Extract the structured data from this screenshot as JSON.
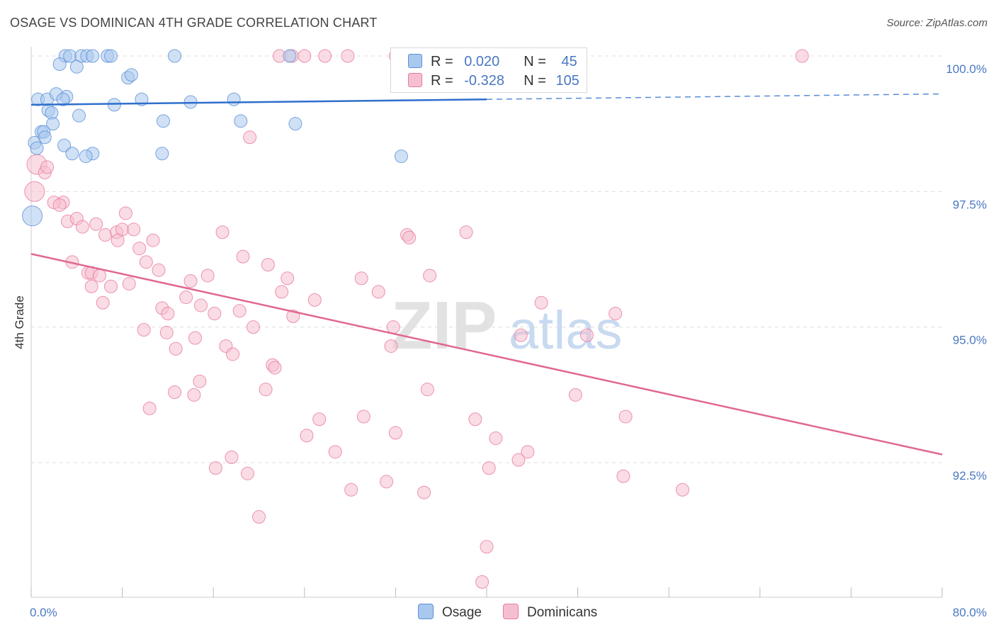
{
  "title": "OSAGE VS DOMINICAN 4TH GRADE CORRELATION CHART",
  "source": "Source: ZipAtlas.com",
  "legend": {
    "rows": [
      {
        "r_label": "R =",
        "r_value": "0.020",
        "n_label": "N =",
        "n_value": "45"
      },
      {
        "r_label": "R =",
        "r_value": "-0.328",
        "n_label": "N =",
        "n_value": "105"
      }
    ]
  },
  "bottom_legend": [
    "Osage",
    "Dominicans"
  ],
  "watermark": {
    "zip": "ZIP",
    "atlas": "atlas"
  },
  "colors": {
    "osage_fill": "#a9c8ee",
    "osage_stroke": "#5b8fd6",
    "osage_line": "#2e6fcc",
    "dom_fill": "#f6bfd0",
    "dom_stroke": "#e8799e",
    "dom_line": "#e0688f",
    "tick": "#4a78c2",
    "grid": "#dddddd"
  },
  "chart_data": {
    "type": "scatter",
    "title": "OSAGE VS DOMINICAN 4TH GRADE CORRELATION CHART",
    "xlabel": "",
    "ylabel": "4th Grade",
    "xlim": [
      0,
      80
    ],
    "ylim": [
      89.6,
      100.6
    ],
    "x_tick_labels": [
      {
        "value": 0,
        "label": "0.0%"
      },
      {
        "value": 80,
        "label": "80.0%"
      }
    ],
    "y_tick_labels": [
      {
        "value": 100.0,
        "label": "100.0%"
      },
      {
        "value": 97.5,
        "label": "97.5%"
      },
      {
        "value": 95.0,
        "label": "95.0%"
      },
      {
        "value": 92.5,
        "label": "92.5%"
      }
    ],
    "grid": true,
    "legend_position": "top-center",
    "series": [
      {
        "name": "Osage",
        "r": 0.02,
        "n": 45,
        "trend": {
          "x_solid": [
            0,
            40
          ],
          "y_solid": [
            99.1,
            99.2
          ],
          "x_dashed": [
            40,
            80
          ],
          "y_dashed": [
            99.2,
            99.3
          ]
        },
        "points": [
          [
            3.0,
            100
          ],
          [
            3.4,
            100
          ],
          [
            4.4,
            100
          ],
          [
            4.9,
            100
          ],
          [
            5.4,
            100
          ],
          [
            6.7,
            100
          ],
          [
            7.0,
            100
          ],
          [
            12.6,
            100
          ],
          [
            22.7,
            100
          ],
          [
            2.5,
            99.85
          ],
          [
            4.0,
            99.8
          ],
          [
            8.5,
            99.6
          ],
          [
            8.8,
            99.65
          ],
          [
            0.6,
            99.2
          ],
          [
            1.4,
            99.2
          ],
          [
            3.1,
            99.25
          ],
          [
            2.2,
            99.3
          ],
          [
            2.8,
            99.2
          ],
          [
            9.7,
            99.2
          ],
          [
            14.0,
            99.15
          ],
          [
            17.8,
            99.2
          ],
          [
            7.3,
            99.1
          ],
          [
            1.5,
            99.0
          ],
          [
            1.8,
            98.95
          ],
          [
            4.2,
            98.9
          ],
          [
            11.6,
            98.8
          ],
          [
            18.4,
            98.8
          ],
          [
            23.2,
            98.75
          ],
          [
            1.9,
            98.75
          ],
          [
            0.9,
            98.6
          ],
          [
            1.1,
            98.6
          ],
          [
            0.3,
            98.4
          ],
          [
            1.2,
            98.5
          ],
          [
            2.9,
            98.35
          ],
          [
            3.6,
            98.2
          ],
          [
            5.4,
            98.2
          ],
          [
            4.8,
            98.15
          ],
          [
            11.5,
            98.2
          ],
          [
            32.5,
            98.15
          ],
          [
            0.5,
            98.3
          ],
          [
            0.1,
            97.05
          ]
        ]
      },
      {
        "name": "Dominicans",
        "r": -0.328,
        "n": 105,
        "trend": {
          "x": [
            0,
            80
          ],
          "y": [
            96.35,
            92.65
          ]
        },
        "points": [
          [
            21.8,
            100
          ],
          [
            22.9,
            100
          ],
          [
            24.0,
            100
          ],
          [
            25.8,
            100
          ],
          [
            27.8,
            100
          ],
          [
            32.0,
            100
          ],
          [
            67.7,
            100
          ],
          [
            19.2,
            98.5
          ],
          [
            0.5,
            98.0
          ],
          [
            0.3,
            97.5
          ],
          [
            1.2,
            97.85
          ],
          [
            1.4,
            97.95
          ],
          [
            2.8,
            97.3
          ],
          [
            2.0,
            97.3
          ],
          [
            2.5,
            97.25
          ],
          [
            8.3,
            97.1
          ],
          [
            3.2,
            96.95
          ],
          [
            4.0,
            97.0
          ],
          [
            4.5,
            96.85
          ],
          [
            5.7,
            96.9
          ],
          [
            6.5,
            96.7
          ],
          [
            7.5,
            96.75
          ],
          [
            8.0,
            96.8
          ],
          [
            9.0,
            96.8
          ],
          [
            16.8,
            96.75
          ],
          [
            33.0,
            96.7
          ],
          [
            33.2,
            96.65
          ],
          [
            38.2,
            96.75
          ],
          [
            7.6,
            96.6
          ],
          [
            10.7,
            96.6
          ],
          [
            9.5,
            96.45
          ],
          [
            18.6,
            96.3
          ],
          [
            3.6,
            96.2
          ],
          [
            10.1,
            96.2
          ],
          [
            20.8,
            96.15
          ],
          [
            11.2,
            96.05
          ],
          [
            5.0,
            96.0
          ],
          [
            5.3,
            96.0
          ],
          [
            6.0,
            95.95
          ],
          [
            15.5,
            95.95
          ],
          [
            22.5,
            95.9
          ],
          [
            29.0,
            95.9
          ],
          [
            35.0,
            95.95
          ],
          [
            14.0,
            95.85
          ],
          [
            8.6,
            95.8
          ],
          [
            7.0,
            95.75
          ],
          [
            5.3,
            95.75
          ],
          [
            22.0,
            95.65
          ],
          [
            30.5,
            95.65
          ],
          [
            6.3,
            95.45
          ],
          [
            13.6,
            95.55
          ],
          [
            24.9,
            95.5
          ],
          [
            44.8,
            95.45
          ],
          [
            11.5,
            95.35
          ],
          [
            14.9,
            95.4
          ],
          [
            18.3,
            95.3
          ],
          [
            16.1,
            95.25
          ],
          [
            12.0,
            95.25
          ],
          [
            23.0,
            95.2
          ],
          [
            51.3,
            95.25
          ],
          [
            19.5,
            95.0
          ],
          [
            31.8,
            95.0
          ],
          [
            9.9,
            94.95
          ],
          [
            11.9,
            94.9
          ],
          [
            14.4,
            94.8
          ],
          [
            43.0,
            94.85
          ],
          [
            48.8,
            94.85
          ],
          [
            17.1,
            94.65
          ],
          [
            31.6,
            94.65
          ],
          [
            12.7,
            94.6
          ],
          [
            17.7,
            94.5
          ],
          [
            21.2,
            94.3
          ],
          [
            21.4,
            94.25
          ],
          [
            14.8,
            94.0
          ],
          [
            12.6,
            93.8
          ],
          [
            20.6,
            93.85
          ],
          [
            34.8,
            93.85
          ],
          [
            14.3,
            93.75
          ],
          [
            47.8,
            93.75
          ],
          [
            10.4,
            93.5
          ],
          [
            29.2,
            93.35
          ],
          [
            25.3,
            93.3
          ],
          [
            39.0,
            93.3
          ],
          [
            52.2,
            93.35
          ],
          [
            32.0,
            93.05
          ],
          [
            24.2,
            93.0
          ],
          [
            40.8,
            92.95
          ],
          [
            26.7,
            92.7
          ],
          [
            43.6,
            92.7
          ],
          [
            17.6,
            92.6
          ],
          [
            42.8,
            92.55
          ],
          [
            16.2,
            92.4
          ],
          [
            40.2,
            92.4
          ],
          [
            19.0,
            92.3
          ],
          [
            52.0,
            92.25
          ],
          [
            31.2,
            92.15
          ],
          [
            28.1,
            92.0
          ],
          [
            34.5,
            91.95
          ],
          [
            57.2,
            92.0
          ],
          [
            20.0,
            91.5
          ],
          [
            40.0,
            90.95
          ],
          [
            39.6,
            90.3
          ]
        ]
      }
    ]
  }
}
